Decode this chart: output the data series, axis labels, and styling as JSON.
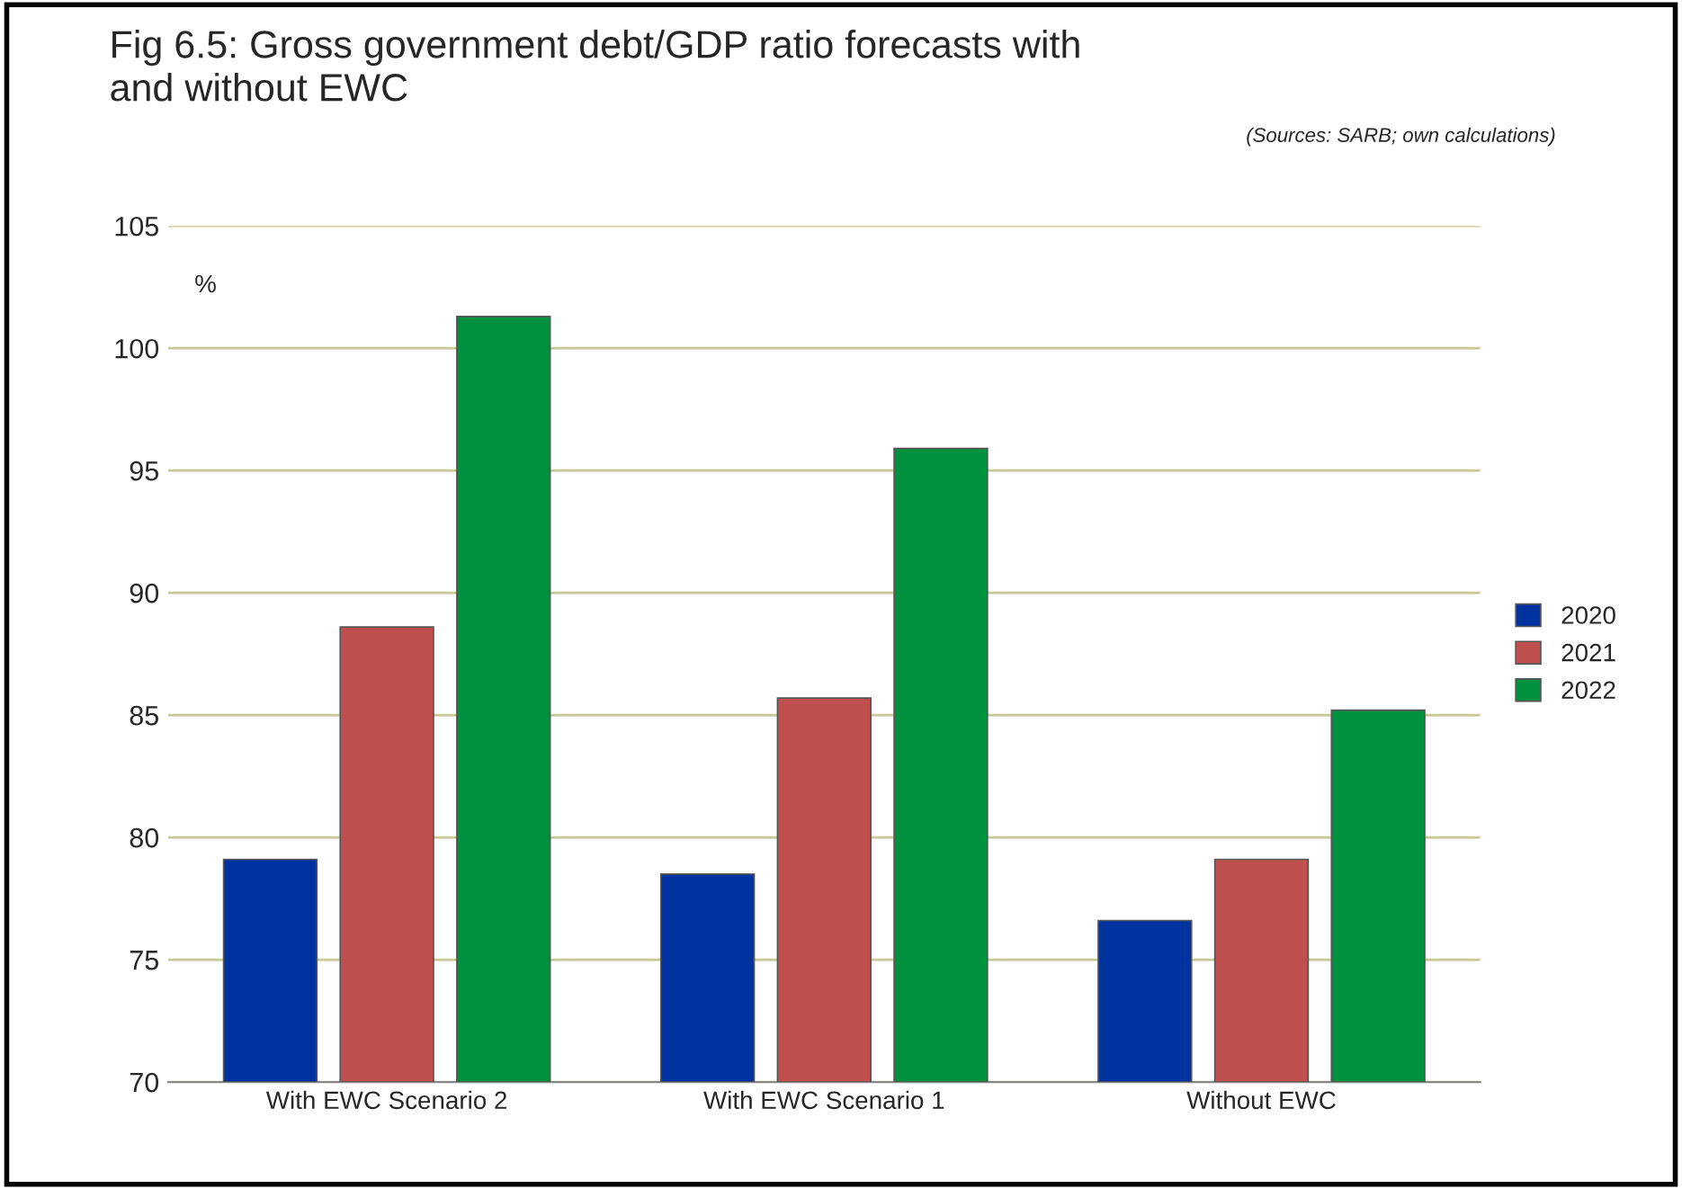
{
  "chart_data": {
    "type": "bar",
    "title": "Fig 6.5: Gross government debt/GDP ratio forecasts with\nand without EWC",
    "annotations": [
      "(Sources: SARB; own calculations)",
      "%"
    ],
    "categories": [
      "With EWC Scenario 2",
      "With EWC Scenario 1",
      "Without EWC"
    ],
    "series": [
      {
        "name": "2020",
        "color": "#0033a0",
        "values": [
          79.1,
          78.5,
          76.6
        ]
      },
      {
        "name": "2021",
        "color": "#c0504d",
        "values": [
          88.6,
          85.7,
          79.1
        ]
      },
      {
        "name": "2022",
        "color": "#00913f",
        "values": [
          101.3,
          95.9,
          85.2
        ]
      }
    ],
    "ylim": [
      70,
      105
    ],
    "yticks": [
      70,
      75,
      80,
      85,
      90,
      95,
      100,
      105
    ],
    "grid": "y",
    "legend": "right"
  }
}
